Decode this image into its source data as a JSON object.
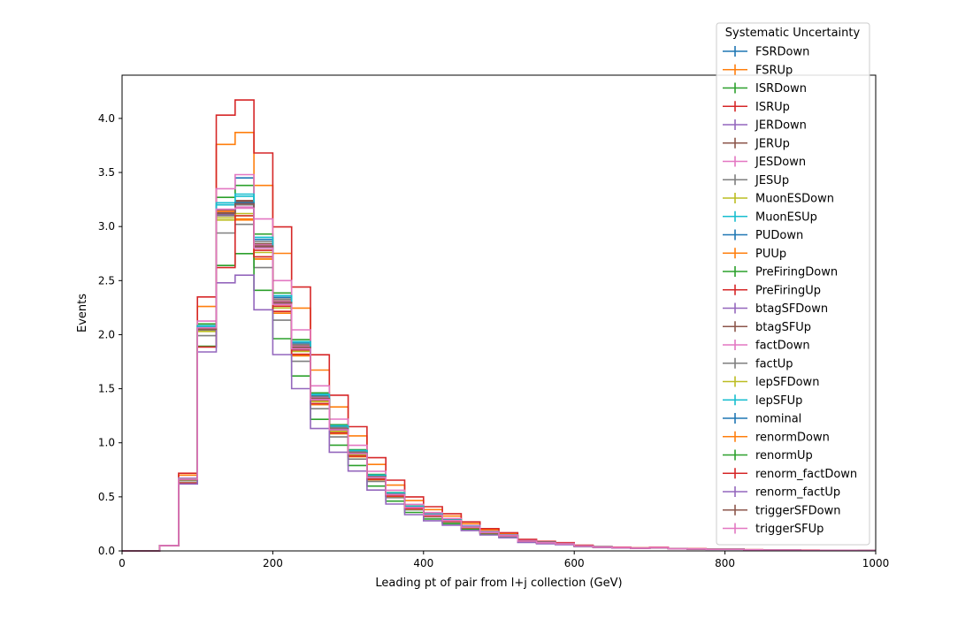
{
  "chart_data": {
    "type": "line",
    "xlabel": "Leading pt of pair from l+j collection (GeV)",
    "ylabel": "Events",
    "xlim": [
      0,
      1000
    ],
    "ylim": [
      0,
      4.4
    ],
    "xticks": [
      0,
      200,
      400,
      600,
      800,
      1000
    ],
    "yticks": [
      0.0,
      0.5,
      1.0,
      1.5,
      2.0,
      2.5,
      3.0,
      3.5,
      4.0
    ],
    "ytick_labels": [
      "0.0",
      "0.5",
      "1.0",
      "1.5",
      "2.0",
      "2.5",
      "3.0",
      "3.5",
      "4.0"
    ],
    "bin_edges": [
      0,
      25,
      50,
      75,
      100,
      125,
      150,
      175,
      200,
      225,
      250,
      275,
      300,
      325,
      350,
      375,
      400,
      425,
      450,
      475,
      500,
      525,
      550,
      575,
      600,
      625,
      650,
      675,
      700,
      725,
      750,
      775,
      800,
      825,
      850,
      875,
      900,
      925,
      950,
      975,
      1000
    ],
    "nominal_bins": [
      0.0,
      0.0,
      0.05,
      0.66,
      2.05,
      3.12,
      3.22,
      2.8,
      2.28,
      1.87,
      1.4,
      1.12,
      0.9,
      0.68,
      0.52,
      0.4,
      0.33,
      0.28,
      0.22,
      0.17,
      0.14,
      0.09,
      0.075,
      0.065,
      0.045,
      0.035,
      0.03,
      0.025,
      0.03,
      0.02,
      0.018,
      0.015,
      0.015,
      0.01,
      0.008,
      0.007,
      0.006,
      0.005,
      0.005,
      0.003
    ],
    "legend": {
      "title": "Systematic Uncertainty",
      "placement": "upper-right-outside"
    },
    "series": [
      {
        "name": "FSRDown",
        "color": "#1f77b4",
        "peak": [
          3.2,
          3.45,
          2.88
        ]
      },
      {
        "name": "FSRUp",
        "color": "#ff7f0e",
        "peak": [
          3.76,
          3.87,
          3.38
        ]
      },
      {
        "name": "ISRDown",
        "color": "#2ca02c",
        "peak": [
          3.27,
          3.38,
          2.93
        ]
      },
      {
        "name": "ISRUp",
        "color": "#d62728",
        "peak": [
          4.03,
          4.17,
          3.68
        ]
      },
      {
        "name": "JERDown",
        "color": "#9467bd",
        "peak": [
          3.12,
          3.2,
          2.82
        ]
      },
      {
        "name": "JERUp",
        "color": "#8c564b",
        "peak": [
          3.15,
          3.24,
          2.84
        ]
      },
      {
        "name": "JESDown",
        "color": "#e377c2",
        "peak": [
          3.35,
          3.48,
          3.07
        ]
      },
      {
        "name": "JESUp",
        "color": "#7f7f7f",
        "peak": [
          2.94,
          3.02,
          2.62
        ]
      },
      {
        "name": "MuonESDown",
        "color": "#bcbd22",
        "peak": [
          3.08,
          3.1,
          2.7
        ]
      },
      {
        "name": "MuonESUp",
        "color": "#17becf",
        "peak": [
          3.22,
          3.28,
          2.9
        ]
      },
      {
        "name": "PUDown",
        "color": "#1f77b4",
        "peak": [
          3.14,
          3.2,
          2.8
        ]
      },
      {
        "name": "PUUp",
        "color": "#ff7f0e",
        "peak": [
          3.1,
          3.07,
          2.72
        ]
      },
      {
        "name": "PreFiringDown",
        "color": "#2ca02c",
        "peak": [
          3.13,
          3.22,
          2.8
        ]
      },
      {
        "name": "PreFiringUp",
        "color": "#d62728",
        "peak": [
          3.12,
          3.2,
          2.78
        ]
      },
      {
        "name": "btagSFDown",
        "color": "#9467bd",
        "peak": [
          3.11,
          3.21,
          2.8
        ]
      },
      {
        "name": "btagSFUp",
        "color": "#8c564b",
        "peak": [
          3.13,
          3.23,
          2.81
        ]
      },
      {
        "name": "factDown",
        "color": "#e377c2",
        "peak": [
          3.14,
          3.18,
          2.83
        ]
      },
      {
        "name": "factUp",
        "color": "#7f7f7f",
        "peak": [
          3.1,
          3.2,
          2.86
        ]
      },
      {
        "name": "lepSFDown",
        "color": "#bcbd22",
        "peak": [
          3.06,
          3.12,
          2.76
        ]
      },
      {
        "name": "lepSFUp",
        "color": "#17becf",
        "peak": [
          3.2,
          3.3,
          2.9
        ]
      },
      {
        "name": "nominal",
        "color": "#1f77b4",
        "peak": [
          3.12,
          3.22,
          2.8
        ]
      },
      {
        "name": "renormDown",
        "color": "#ff7f0e",
        "peak": [
          3.14,
          3.06,
          2.7
        ]
      },
      {
        "name": "renormUp",
        "color": "#2ca02c",
        "peak": [
          2.64,
          2.75,
          2.41
        ]
      },
      {
        "name": "renorm_factDown",
        "color": "#d62728",
        "peak": [
          2.62,
          3.1,
          2.72
        ]
      },
      {
        "name": "renorm_factUp",
        "color": "#9467bd",
        "peak": [
          2.48,
          2.55,
          2.23
        ]
      },
      {
        "name": "triggerSFDown",
        "color": "#8c564b",
        "peak": [
          3.12,
          3.21,
          2.82
        ]
      },
      {
        "name": "triggerSFUp",
        "color": "#e377c2",
        "peak": [
          3.16,
          3.17,
          2.8
        ]
      }
    ]
  }
}
